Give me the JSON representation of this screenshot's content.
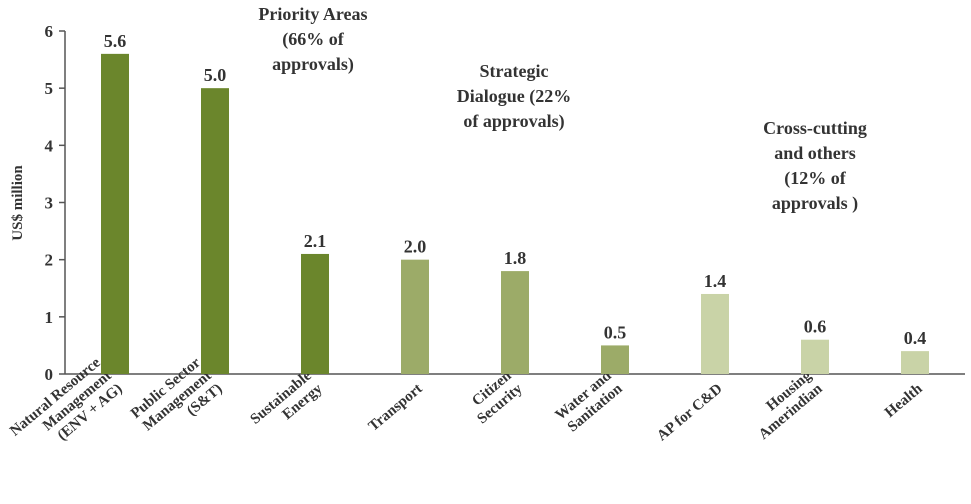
{
  "chart_data": {
    "type": "bar",
    "y_label": "US$ million",
    "categories": [
      "Natural Resource\nManagement\n(ENV + AG)",
      "Public Sector\nManagement\n(S&T)",
      "Sustainable\nEnergy",
      "Transport",
      "Citizen\nSecurity",
      "Water and\nSanitation",
      "AP for C&D",
      "Housing\nAmerindian",
      "Health"
    ],
    "values": [
      5.6,
      5,
      2.1,
      2,
      1.8,
      0.5,
      1.4,
      0.6,
      0.4
    ],
    "value_labels": [
      "5.6",
      "5.0",
      "2.1",
      "2.0",
      "1.8",
      "0.5",
      "1.4",
      "0.6",
      "0.4"
    ],
    "colors": [
      "#6b862c",
      "#6b862c",
      "#6b862c",
      "#9cab68",
      "#9cab68",
      "#9cab68",
      "#c9d3a7",
      "#c9d3a7",
      "#c9d3a7"
    ],
    "annotations": [
      "Priority Areas\n(66% of\napprovals)",
      "Strategic\nDialogue (22%\nof approvals)",
      "Cross-cutting\nand others\n(12% of\napprovals )"
    ],
    "ylim": [
      0,
      6
    ],
    "yticks": [
      0,
      1,
      2,
      3,
      4,
      5,
      6
    ],
    "grid": false
  }
}
